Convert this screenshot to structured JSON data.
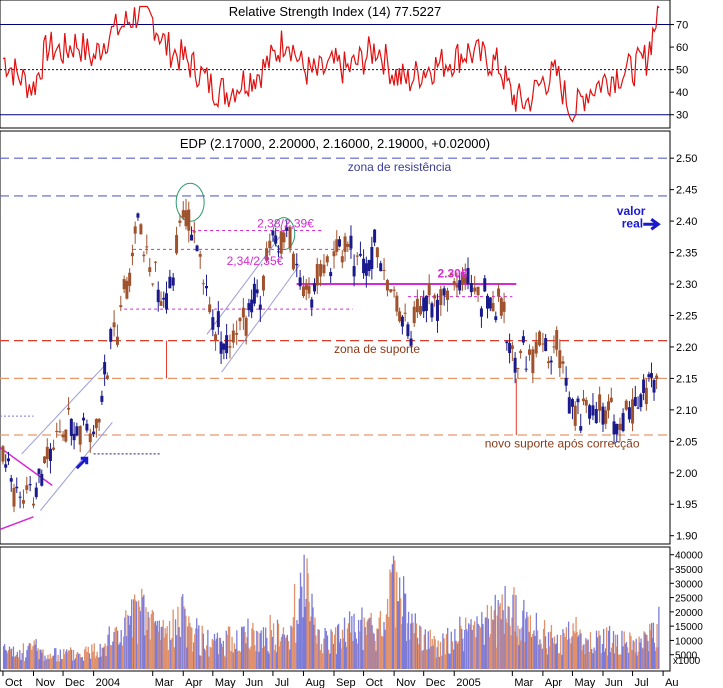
{
  "chart_data": [
    {
      "type": "line",
      "panel": "rsi",
      "title": "Relative Strength Index (14) 77.5227",
      "yticks": [
        30,
        40,
        50,
        60,
        70
      ],
      "ylim": [
        25,
        80
      ],
      "reference_lines": [
        30,
        50,
        70
      ],
      "line_color": "#e01010",
      "series": [
        {
          "x": [
            "2003-10-01",
            "2003-10-15",
            "2003-11-01",
            "2003-11-15",
            "2003-12-01",
            "2003-12-15",
            "2004-01-01",
            "2004-01-15",
            "2004-02-01",
            "2004-02-15",
            "2004-03-01",
            "2004-03-15",
            "2004-04-01",
            "2004-04-15",
            "2004-05-01",
            "2004-05-15",
            "2004-06-01",
            "2004-06-15",
            "2004-07-01",
            "2004-07-15",
            "2004-08-01",
            "2004-08-15",
            "2004-09-01",
            "2004-09-15",
            "2004-10-01",
            "2004-10-15",
            "2004-11-01",
            "2004-11-15",
            "2004-12-01",
            "2004-12-15",
            "2005-01-01",
            "2005-01-15",
            "2005-02-01",
            "2005-02-15",
            "2005-03-01",
            "2005-03-15",
            "2005-04-01",
            "2005-04-15",
            "2005-05-01",
            "2005-05-15",
            "2005-06-01",
            "2005-06-15",
            "2005-07-01",
            "2005-07-15",
            "2005-07-28"
          ],
          "values": [
            55,
            48,
            42,
            60,
            58,
            62,
            55,
            65,
            70,
            75,
            72,
            60,
            55,
            50,
            42,
            40,
            45,
            48,
            55,
            65,
            50,
            48,
            52,
            50,
            55,
            60,
            48,
            45,
            50,
            52,
            55,
            58,
            55,
            52,
            38,
            35,
            45,
            48,
            30,
            40,
            45,
            48,
            50,
            55,
            77.5
          ]
        }
      ]
    },
    {
      "type": "candlestick",
      "panel": "price",
      "title": "EDP (2.17000, 2.20000, 2.16000, 2.19000, +0.02000)",
      "x_tick_labels": [
        "Oct",
        "Nov",
        "Dec",
        "2004",
        "Mar",
        "Apr",
        "May",
        "Jun",
        "Jul",
        "Aug",
        "Sep",
        "Oct",
        "Nov",
        "Dec",
        "2005",
        "Mar",
        "Apr",
        "May",
        "Jun",
        "Jul",
        "Au"
      ],
      "yticks": [
        1.9,
        1.95,
        2.0,
        2.05,
        2.1,
        2.15,
        2.2,
        2.25,
        2.3,
        2.35,
        2.4,
        2.45,
        2.5
      ],
      "ylim": [
        1.89,
        2.54
      ],
      "colors": {
        "up": "#1a1a8c",
        "down": "#a0522d",
        "resistance": "#5b63c7",
        "support": "#e23a2a",
        "pink": "#d62ad6",
        "blue_annotation": "#1a1acc",
        "channel": "#9a9adc"
      },
      "series": [
        {
          "name": "EDP",
          "x": [
            "2003-10-01",
            "2003-10-15",
            "2003-11-01",
            "2003-11-15",
            "2003-12-01",
            "2003-12-15",
            "2004-01-01",
            "2004-01-15",
            "2004-02-01",
            "2004-02-15",
            "2004-03-01",
            "2004-03-15",
            "2004-04-01",
            "2004-04-15",
            "2004-05-01",
            "2004-05-15",
            "2004-06-01",
            "2004-06-15",
            "2004-07-01",
            "2004-07-15",
            "2004-08-01",
            "2004-08-15",
            "2004-09-01",
            "2004-09-15",
            "2004-10-01",
            "2004-10-15",
            "2004-11-01",
            "2004-11-15",
            "2004-12-01",
            "2004-12-15",
            "2005-01-01",
            "2005-01-15",
            "2005-02-01",
            "2005-02-15",
            "2005-03-01",
            "2005-03-15",
            "2005-04-01",
            "2005-04-15",
            "2005-05-01",
            "2005-05-15",
            "2005-06-01",
            "2005-06-15",
            "2005-07-01",
            "2005-07-15",
            "2005-07-28"
          ],
          "close": [
            2.02,
            1.97,
            1.95,
            2.03,
            2.06,
            2.08,
            2.04,
            2.18,
            2.28,
            2.4,
            2.3,
            2.28,
            2.42,
            2.36,
            2.24,
            2.2,
            2.24,
            2.28,
            2.36,
            2.38,
            2.27,
            2.3,
            2.34,
            2.36,
            2.33,
            2.36,
            2.28,
            2.22,
            2.26,
            2.28,
            2.29,
            2.3,
            2.28,
            2.26,
            2.2,
            2.18,
            2.2,
            2.19,
            2.1,
            2.11,
            2.1,
            2.08,
            2.09,
            2.12,
            2.19
          ]
        }
      ],
      "horizontal_lines": [
        {
          "level": 2.5,
          "style": "dash",
          "color": "resistance"
        },
        {
          "level": 2.44,
          "style": "dash",
          "color": "resistance"
        },
        {
          "level": 2.21,
          "style": "dash",
          "color": "support"
        },
        {
          "level": 2.15,
          "style": "dash",
          "color": "support-light"
        },
        {
          "level": 2.06,
          "style": "dash",
          "color": "support-light"
        }
      ],
      "annotations": [
        {
          "text": "zona de resistência",
          "x": "2004-09-15",
          "y": 2.48,
          "color": "#3b3b9c"
        },
        {
          "text": "zona de suporte",
          "x": "2004-09-01",
          "y": 2.19,
          "color": "#8a3b1a"
        },
        {
          "text": "novo suporte após correcção",
          "x": "2005-02-01",
          "y": 2.04,
          "color": "#8a3b1a"
        },
        {
          "text": "2,38/2,39€",
          "x": "2004-06-15",
          "y": 2.39,
          "color": "#d62ad6"
        },
        {
          "text": "2,34/2,35€",
          "x": "2004-05-15",
          "y": 2.33,
          "color": "#d62ad6"
        },
        {
          "text": "2.30€",
          "x": "2004-12-15",
          "y": 2.31,
          "color": "#d62ad6"
        },
        {
          "text": "valor",
          "x": "2005-06-15",
          "y": 2.41,
          "color": "#1a1acc"
        },
        {
          "text": "real",
          "x": "2005-06-20",
          "y": 2.39,
          "color": "#1a1acc"
        }
      ]
    },
    {
      "type": "bar",
      "panel": "volume",
      "unit_label": "x1000",
      "yticks": [
        5000,
        10000,
        15000,
        20000,
        25000,
        30000,
        35000,
        40000
      ],
      "ylim": [
        0,
        42000
      ],
      "colors": {
        "up": "#7b7bd9",
        "down": "#e0906a"
      },
      "x": [
        "2003-10-01",
        "2003-10-15",
        "2003-11-01",
        "2003-11-15",
        "2003-12-01",
        "2003-12-15",
        "2004-01-01",
        "2004-01-15",
        "2004-02-01",
        "2004-02-15",
        "2004-03-01",
        "2004-03-15",
        "2004-04-01",
        "2004-04-15",
        "2004-05-01",
        "2004-05-15",
        "2004-06-01",
        "2004-06-15",
        "2004-07-01",
        "2004-07-15",
        "2004-08-01",
        "2004-08-15",
        "2004-09-01",
        "2004-09-15",
        "2004-10-01",
        "2004-10-15",
        "2004-11-01",
        "2004-11-15",
        "2004-12-01",
        "2004-12-15",
        "2005-01-01",
        "2005-01-15",
        "2005-02-01",
        "2005-02-15",
        "2005-03-01",
        "2005-03-15",
        "2005-04-01",
        "2005-04-15",
        "2005-05-01",
        "2005-05-15",
        "2005-06-01",
        "2005-06-15",
        "2005-07-01",
        "2005-07-15",
        "2005-07-28"
      ],
      "values": [
        8000,
        6000,
        10000,
        5000,
        7000,
        6000,
        9000,
        12000,
        18000,
        24000,
        20000,
        15000,
        22000,
        14000,
        10000,
        12000,
        15000,
        13000,
        16000,
        12000,
        40000,
        14000,
        12000,
        16000,
        18000,
        14000,
        38000,
        20000,
        12000,
        10000,
        14000,
        16000,
        18000,
        22000,
        26000,
        20000,
        14000,
        12000,
        16000,
        10000,
        14000,
        12000,
        10000,
        12000,
        18000
      ]
    }
  ]
}
